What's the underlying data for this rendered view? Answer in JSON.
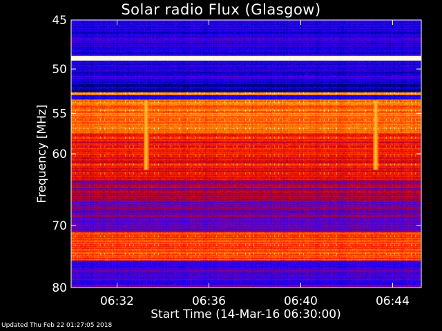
{
  "title": "Solar radio Flux (Glasgow)",
  "updated": "Updated Thu Feb 22 01:27:05 2018",
  "chart_data": {
    "type": "heatmap",
    "title": "Solar radio Flux (Glasgow)",
    "xlabel": "Start Time (14-Mar-16 06:30:00)",
    "ylabel": "Frequency [MHz]",
    "x_unit": "time (HH:MM)",
    "xlim": [
      "06:30:00",
      "06:45:15"
    ],
    "ylim": [
      45,
      80
    ],
    "y_scale": "log",
    "y_inverted": true,
    "x_ticks": [
      "06:32",
      "06:36",
      "06:40",
      "06:44"
    ],
    "y_ticks": [
      45,
      50,
      55,
      60,
      70,
      80
    ],
    "colormap": [
      "#00002a",
      "#0000c8",
      "#3a00ff",
      "#b00020",
      "#ff1a00",
      "#ff7a00",
      "#ffd040",
      "#ffffff"
    ],
    "bands_mhz": [
      {
        "from": 45,
        "to": 48.6,
        "level": 0.22
      },
      {
        "from": 48.6,
        "to": 49.1,
        "level": 1.0
      },
      {
        "from": 49.1,
        "to": 51.5,
        "level": 0.2
      },
      {
        "from": 51.5,
        "to": 52.6,
        "level": 0.12
      },
      {
        "from": 52.6,
        "to": 52.9,
        "level": 0.72
      },
      {
        "from": 52.9,
        "to": 53.4,
        "level": 0.25
      },
      {
        "from": 53.4,
        "to": 57.5,
        "level": 0.68
      },
      {
        "from": 57.5,
        "to": 63.5,
        "level": 0.55
      },
      {
        "from": 63.5,
        "to": 66.5,
        "level": 0.42
      },
      {
        "from": 66.5,
        "to": 71.0,
        "level": 0.35
      },
      {
        "from": 71.0,
        "to": 75.5,
        "level": 0.63
      },
      {
        "from": 75.5,
        "to": 80.0,
        "level": 0.3
      }
    ],
    "bursts": [
      {
        "time": "06:33:15",
        "from": 53.5,
        "to": 62.0,
        "level": 0.85
      },
      {
        "time": "06:43:15",
        "from": 53.5,
        "to": 62.0,
        "level": 0.85
      }
    ]
  }
}
